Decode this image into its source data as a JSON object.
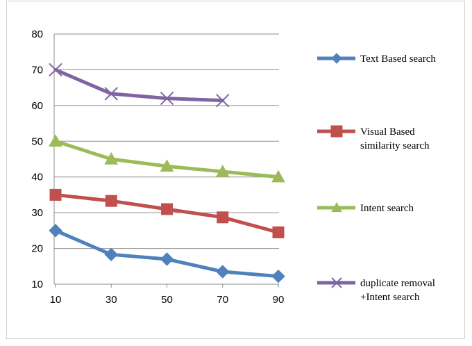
{
  "chart_data": {
    "type": "line",
    "title": "",
    "xlabel": "",
    "ylabel": "",
    "x": [
      10,
      30,
      50,
      70,
      90
    ],
    "ylim": [
      10,
      80
    ],
    "yticks": [
      10,
      20,
      30,
      40,
      50,
      60,
      70,
      80
    ],
    "grid": true,
    "legend_position": "right",
    "series": [
      {
        "name_lines": [
          "Text Based search"
        ],
        "color": "#4f81bd",
        "marker": "diamond",
        "values": [
          25,
          18.3,
          17,
          13.5,
          12.2
        ]
      },
      {
        "name_lines": [
          "Visual Based",
          "similarity search"
        ],
        "color": "#c0504d",
        "marker": "square",
        "values": [
          35,
          33.3,
          31,
          28.7,
          24.5
        ]
      },
      {
        "name_lines": [
          "Intent search"
        ],
        "color": "#9bbb59",
        "marker": "triangle",
        "values": [
          50,
          45,
          43,
          41.5,
          40
        ]
      },
      {
        "name_lines": [
          "duplicate removal",
          "+Intent search"
        ],
        "color": "#8064a2",
        "marker": "x",
        "values": [
          70,
          63.3,
          62,
          61.4,
          null
        ]
      }
    ]
  }
}
